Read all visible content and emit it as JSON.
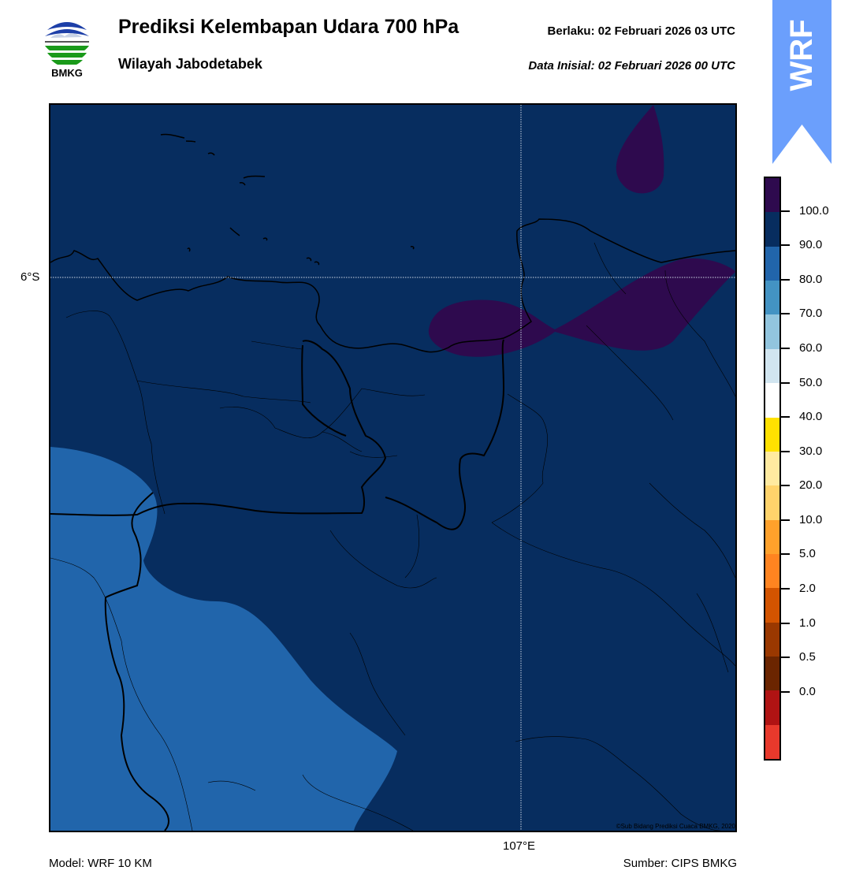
{
  "header": {
    "title": "Prediksi Kelembapan Udara 700 hPa",
    "subtitle": "Wilayah Jabodetabek",
    "valid": "Berlaku:  02 Februari 2026 03 UTC",
    "initial": "Data Inisial:  02 Februari 2026 00 UTC"
  },
  "logo": {
    "text": "BMKG",
    "icon": "bmkg-logo"
  },
  "badge": {
    "text": "WRF",
    "color": "#6b9ffc"
  },
  "map": {
    "lat_label": "6°S",
    "lon_label": "107°E",
    "copyright": "©Sub Bidang Prediksi Cuaca BMKG, 2020",
    "colors": {
      "ocean_fill": "#072d5f",
      "mid_fill": "#2165ab",
      "high_fill": "#2e0a4e"
    }
  },
  "footer": {
    "model": "Model: WRF 10 KM",
    "source": "Sumber: CIPS BMKG"
  },
  "colorbar": {
    "labels": [
      "100.0",
      "90.0",
      "80.0",
      "70.0",
      "60.0",
      "50.0",
      "40.0",
      "30.0",
      "20.0",
      "10.0",
      "5.0",
      "2.0",
      "1.0",
      "0.5",
      "0.0"
    ],
    "colors": [
      "#2e0a4e",
      "#072d5f",
      "#2165ab",
      "#4393c3",
      "#92c5de",
      "#d1e5f0",
      "#ffffff",
      "#ffe100",
      "#ffeaa0",
      "#ffd36b",
      "#ffa12b",
      "#ff8420",
      "#d35400",
      "#9a3800",
      "#6b2500",
      "#b01313",
      "#e8392c"
    ]
  }
}
